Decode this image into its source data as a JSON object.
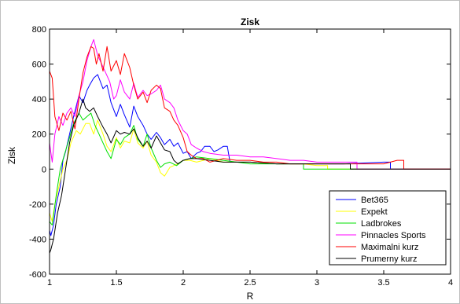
{
  "chart_data": {
    "type": "line",
    "title": "Zisk",
    "xlabel": "R",
    "ylabel": "Zisk",
    "xlim": [
      1,
      4
    ],
    "ylim": [
      -600,
      800
    ],
    "x_ticks": [
      1,
      1.5,
      2,
      2.5,
      3,
      3.5,
      4
    ],
    "x_tick_labels": [
      "1",
      "1.5",
      "2",
      "2.5",
      "3",
      "3.5",
      "4"
    ],
    "y_ticks": [
      -600,
      -400,
      -200,
      0,
      200,
      400,
      600,
      800
    ],
    "y_tick_labels": [
      "-600",
      "-400",
      "-200",
      "0",
      "200",
      "400",
      "600",
      "800"
    ],
    "grid": false,
    "legend_position": "bottom-right",
    "series": [
      {
        "name": "Bet365",
        "color": "#0000ff",
        "points": [
          [
            1.0,
            -350
          ],
          [
            1.01,
            -380
          ],
          [
            1.03,
            -320
          ],
          [
            1.05,
            -200
          ],
          [
            1.08,
            -100
          ],
          [
            1.1,
            50
          ],
          [
            1.12,
            100
          ],
          [
            1.15,
            200
          ],
          [
            1.18,
            300
          ],
          [
            1.22,
            420
          ],
          [
            1.25,
            380
          ],
          [
            1.28,
            450
          ],
          [
            1.3,
            480
          ],
          [
            1.33,
            520
          ],
          [
            1.36,
            540
          ],
          [
            1.4,
            460
          ],
          [
            1.43,
            480
          ],
          [
            1.46,
            380
          ],
          [
            1.5,
            300
          ],
          [
            1.53,
            370
          ],
          [
            1.56,
            310
          ],
          [
            1.6,
            240
          ],
          [
            1.63,
            360
          ],
          [
            1.66,
            300
          ],
          [
            1.7,
            250
          ],
          [
            1.73,
            200
          ],
          [
            1.76,
            170
          ],
          [
            1.8,
            210
          ],
          [
            1.83,
            180
          ],
          [
            1.86,
            140
          ],
          [
            1.9,
            170
          ],
          [
            1.93,
            130
          ],
          [
            1.96,
            150
          ],
          [
            2.0,
            90
          ],
          [
            2.03,
            100
          ],
          [
            2.06,
            60
          ],
          [
            2.1,
            90
          ],
          [
            2.13,
            100
          ],
          [
            2.16,
            130
          ],
          [
            2.2,
            130
          ],
          [
            2.23,
            100
          ],
          [
            2.26,
            110
          ],
          [
            2.3,
            130
          ],
          [
            2.33,
            130
          ],
          [
            2.35,
            40
          ],
          [
            2.5,
            40
          ],
          [
            2.7,
            30
          ],
          [
            3.0,
            30
          ],
          [
            3.2,
            30
          ],
          [
            3.5,
            40
          ],
          [
            3.55,
            40
          ],
          [
            3.55,
            0
          ],
          [
            4.0,
            0
          ]
        ]
      },
      {
        "name": "Expekt",
        "color": "#ffff00",
        "points": [
          [
            1.0,
            -250
          ],
          [
            1.02,
            -300
          ],
          [
            1.04,
            -200
          ],
          [
            1.07,
            -100
          ],
          [
            1.1,
            0
          ],
          [
            1.13,
            50
          ],
          [
            1.16,
            150
          ],
          [
            1.2,
            220
          ],
          [
            1.23,
            200
          ],
          [
            1.27,
            260
          ],
          [
            1.3,
            260
          ],
          [
            1.33,
            200
          ],
          [
            1.36,
            280
          ],
          [
            1.4,
            200
          ],
          [
            1.43,
            130
          ],
          [
            1.46,
            100
          ],
          [
            1.5,
            180
          ],
          [
            1.53,
            120
          ],
          [
            1.56,
            160
          ],
          [
            1.6,
            150
          ],
          [
            1.63,
            230
          ],
          [
            1.66,
            150
          ],
          [
            1.7,
            120
          ],
          [
            1.73,
            160
          ],
          [
            1.76,
            80
          ],
          [
            1.8,
            40
          ],
          [
            1.83,
            -20
          ],
          [
            1.86,
            -40
          ],
          [
            1.9,
            10
          ],
          [
            1.93,
            20
          ],
          [
            1.96,
            30
          ],
          [
            2.0,
            50
          ],
          [
            2.05,
            50
          ],
          [
            2.1,
            40
          ],
          [
            2.2,
            60
          ],
          [
            2.3,
            40
          ],
          [
            2.5,
            40
          ],
          [
            2.7,
            30
          ],
          [
            2.9,
            30
          ],
          [
            3.0,
            20
          ],
          [
            3.08,
            20
          ],
          [
            3.08,
            0
          ],
          [
            4.0,
            0
          ]
        ]
      },
      {
        "name": "Ladbrokes",
        "color": "#00e000",
        "points": [
          [
            1.0,
            -300
          ],
          [
            1.02,
            -320
          ],
          [
            1.05,
            -150
          ],
          [
            1.08,
            0
          ],
          [
            1.11,
            80
          ],
          [
            1.15,
            180
          ],
          [
            1.18,
            260
          ],
          [
            1.22,
            320
          ],
          [
            1.25,
            280
          ],
          [
            1.28,
            300
          ],
          [
            1.31,
            320
          ],
          [
            1.34,
            250
          ],
          [
            1.37,
            200
          ],
          [
            1.4,
            150
          ],
          [
            1.43,
            100
          ],
          [
            1.46,
            60
          ],
          [
            1.5,
            170
          ],
          [
            1.53,
            140
          ],
          [
            1.56,
            180
          ],
          [
            1.6,
            200
          ],
          [
            1.63,
            250
          ],
          [
            1.66,
            170
          ],
          [
            1.7,
            130
          ],
          [
            1.73,
            200
          ],
          [
            1.76,
            120
          ],
          [
            1.8,
            50
          ],
          [
            1.83,
            10
          ],
          [
            1.86,
            30
          ],
          [
            1.9,
            40
          ],
          [
            1.95,
            20
          ],
          [
            2.0,
            50
          ],
          [
            2.05,
            60
          ],
          [
            2.1,
            70
          ],
          [
            2.2,
            60
          ],
          [
            2.3,
            50
          ],
          [
            2.5,
            30
          ],
          [
            2.7,
            30
          ],
          [
            2.9,
            30
          ],
          [
            2.9,
            0
          ],
          [
            4.0,
            0
          ]
        ]
      },
      {
        "name": "Pinnacles Sports",
        "color": "#ff00ff",
        "points": [
          [
            1.0,
            150
          ],
          [
            1.02,
            40
          ],
          [
            1.04,
            200
          ],
          [
            1.07,
            300
          ],
          [
            1.1,
            250
          ],
          [
            1.13,
            320
          ],
          [
            1.16,
            350
          ],
          [
            1.19,
            300
          ],
          [
            1.22,
            420
          ],
          [
            1.25,
            500
          ],
          [
            1.28,
            620
          ],
          [
            1.31,
            700
          ],
          [
            1.33,
            740
          ],
          [
            1.36,
            650
          ],
          [
            1.39,
            600
          ],
          [
            1.42,
            550
          ],
          [
            1.45,
            500
          ],
          [
            1.48,
            400
          ],
          [
            1.5,
            420
          ],
          [
            1.53,
            510
          ],
          [
            1.56,
            440
          ],
          [
            1.6,
            400
          ],
          [
            1.63,
            490
          ],
          [
            1.66,
            410
          ],
          [
            1.7,
            450
          ],
          [
            1.73,
            420
          ],
          [
            1.76,
            430
          ],
          [
            1.8,
            450
          ],
          [
            1.83,
            480
          ],
          [
            1.86,
            400
          ],
          [
            1.9,
            380
          ],
          [
            1.93,
            350
          ],
          [
            1.96,
            280
          ],
          [
            2.0,
            220
          ],
          [
            2.03,
            200
          ],
          [
            2.06,
            140
          ],
          [
            2.1,
            120
          ],
          [
            2.15,
            100
          ],
          [
            2.2,
            90
          ],
          [
            2.3,
            80
          ],
          [
            2.4,
            80
          ],
          [
            2.5,
            70
          ],
          [
            2.6,
            70
          ],
          [
            2.7,
            60
          ],
          [
            2.8,
            50
          ],
          [
            2.9,
            50
          ],
          [
            3.0,
            40
          ],
          [
            3.3,
            40
          ],
          [
            3.3,
            0
          ],
          [
            4.0,
            0
          ]
        ]
      },
      {
        "name": "Maximalni kurz",
        "color": "#ff0000",
        "points": [
          [
            1.0,
            560
          ],
          [
            1.02,
            520
          ],
          [
            1.04,
            300
          ],
          [
            1.07,
            220
          ],
          [
            1.1,
            320
          ],
          [
            1.13,
            280
          ],
          [
            1.16,
            330
          ],
          [
            1.19,
            230
          ],
          [
            1.22,
            400
          ],
          [
            1.25,
            550
          ],
          [
            1.28,
            640
          ],
          [
            1.31,
            700
          ],
          [
            1.33,
            690
          ],
          [
            1.35,
            600
          ],
          [
            1.37,
            660
          ],
          [
            1.4,
            560
          ],
          [
            1.43,
            700
          ],
          [
            1.46,
            560
          ],
          [
            1.5,
            620
          ],
          [
            1.53,
            540
          ],
          [
            1.56,
            660
          ],
          [
            1.6,
            580
          ],
          [
            1.63,
            480
          ],
          [
            1.66,
            400
          ],
          [
            1.7,
            440
          ],
          [
            1.73,
            380
          ],
          [
            1.76,
            450
          ],
          [
            1.8,
            480
          ],
          [
            1.83,
            460
          ],
          [
            1.86,
            350
          ],
          [
            1.9,
            330
          ],
          [
            1.93,
            280
          ],
          [
            1.96,
            250
          ],
          [
            2.0,
            180
          ],
          [
            2.03,
            100
          ],
          [
            2.06,
            80
          ],
          [
            2.1,
            60
          ],
          [
            2.15,
            60
          ],
          [
            2.2,
            40
          ],
          [
            2.3,
            60
          ],
          [
            2.4,
            50
          ],
          [
            2.5,
            50
          ],
          [
            2.6,
            40
          ],
          [
            2.7,
            40
          ],
          [
            2.8,
            30
          ],
          [
            2.9,
            30
          ],
          [
            3.0,
            30
          ],
          [
            3.2,
            30
          ],
          [
            3.5,
            30
          ],
          [
            3.6,
            50
          ],
          [
            3.65,
            50
          ],
          [
            3.65,
            0
          ],
          [
            4.0,
            0
          ]
        ]
      },
      {
        "name": "Prumerny kurz",
        "color": "#000000",
        "points": [
          [
            1.0,
            -480
          ],
          [
            1.01,
            -460
          ],
          [
            1.03,
            -400
          ],
          [
            1.06,
            -250
          ],
          [
            1.09,
            -150
          ],
          [
            1.12,
            0
          ],
          [
            1.15,
            150
          ],
          [
            1.18,
            250
          ],
          [
            1.22,
            320
          ],
          [
            1.25,
            400
          ],
          [
            1.27,
            350
          ],
          [
            1.3,
            330
          ],
          [
            1.33,
            350
          ],
          [
            1.36,
            300
          ],
          [
            1.4,
            240
          ],
          [
            1.43,
            200
          ],
          [
            1.46,
            150
          ],
          [
            1.5,
            220
          ],
          [
            1.53,
            200
          ],
          [
            1.56,
            210
          ],
          [
            1.6,
            200
          ],
          [
            1.63,
            230
          ],
          [
            1.66,
            180
          ],
          [
            1.7,
            130
          ],
          [
            1.73,
            160
          ],
          [
            1.76,
            120
          ],
          [
            1.8,
            190
          ],
          [
            1.83,
            150
          ],
          [
            1.86,
            110
          ],
          [
            1.9,
            100
          ],
          [
            1.93,
            50
          ],
          [
            1.96,
            30
          ],
          [
            2.0,
            50
          ],
          [
            2.05,
            60
          ],
          [
            2.1,
            60
          ],
          [
            2.2,
            50
          ],
          [
            2.3,
            40
          ],
          [
            2.5,
            40
          ],
          [
            2.7,
            30
          ],
          [
            3.0,
            30
          ],
          [
            3.2,
            30
          ],
          [
            3.25,
            30
          ],
          [
            3.25,
            0
          ],
          [
            4.0,
            0
          ]
        ]
      }
    ]
  }
}
